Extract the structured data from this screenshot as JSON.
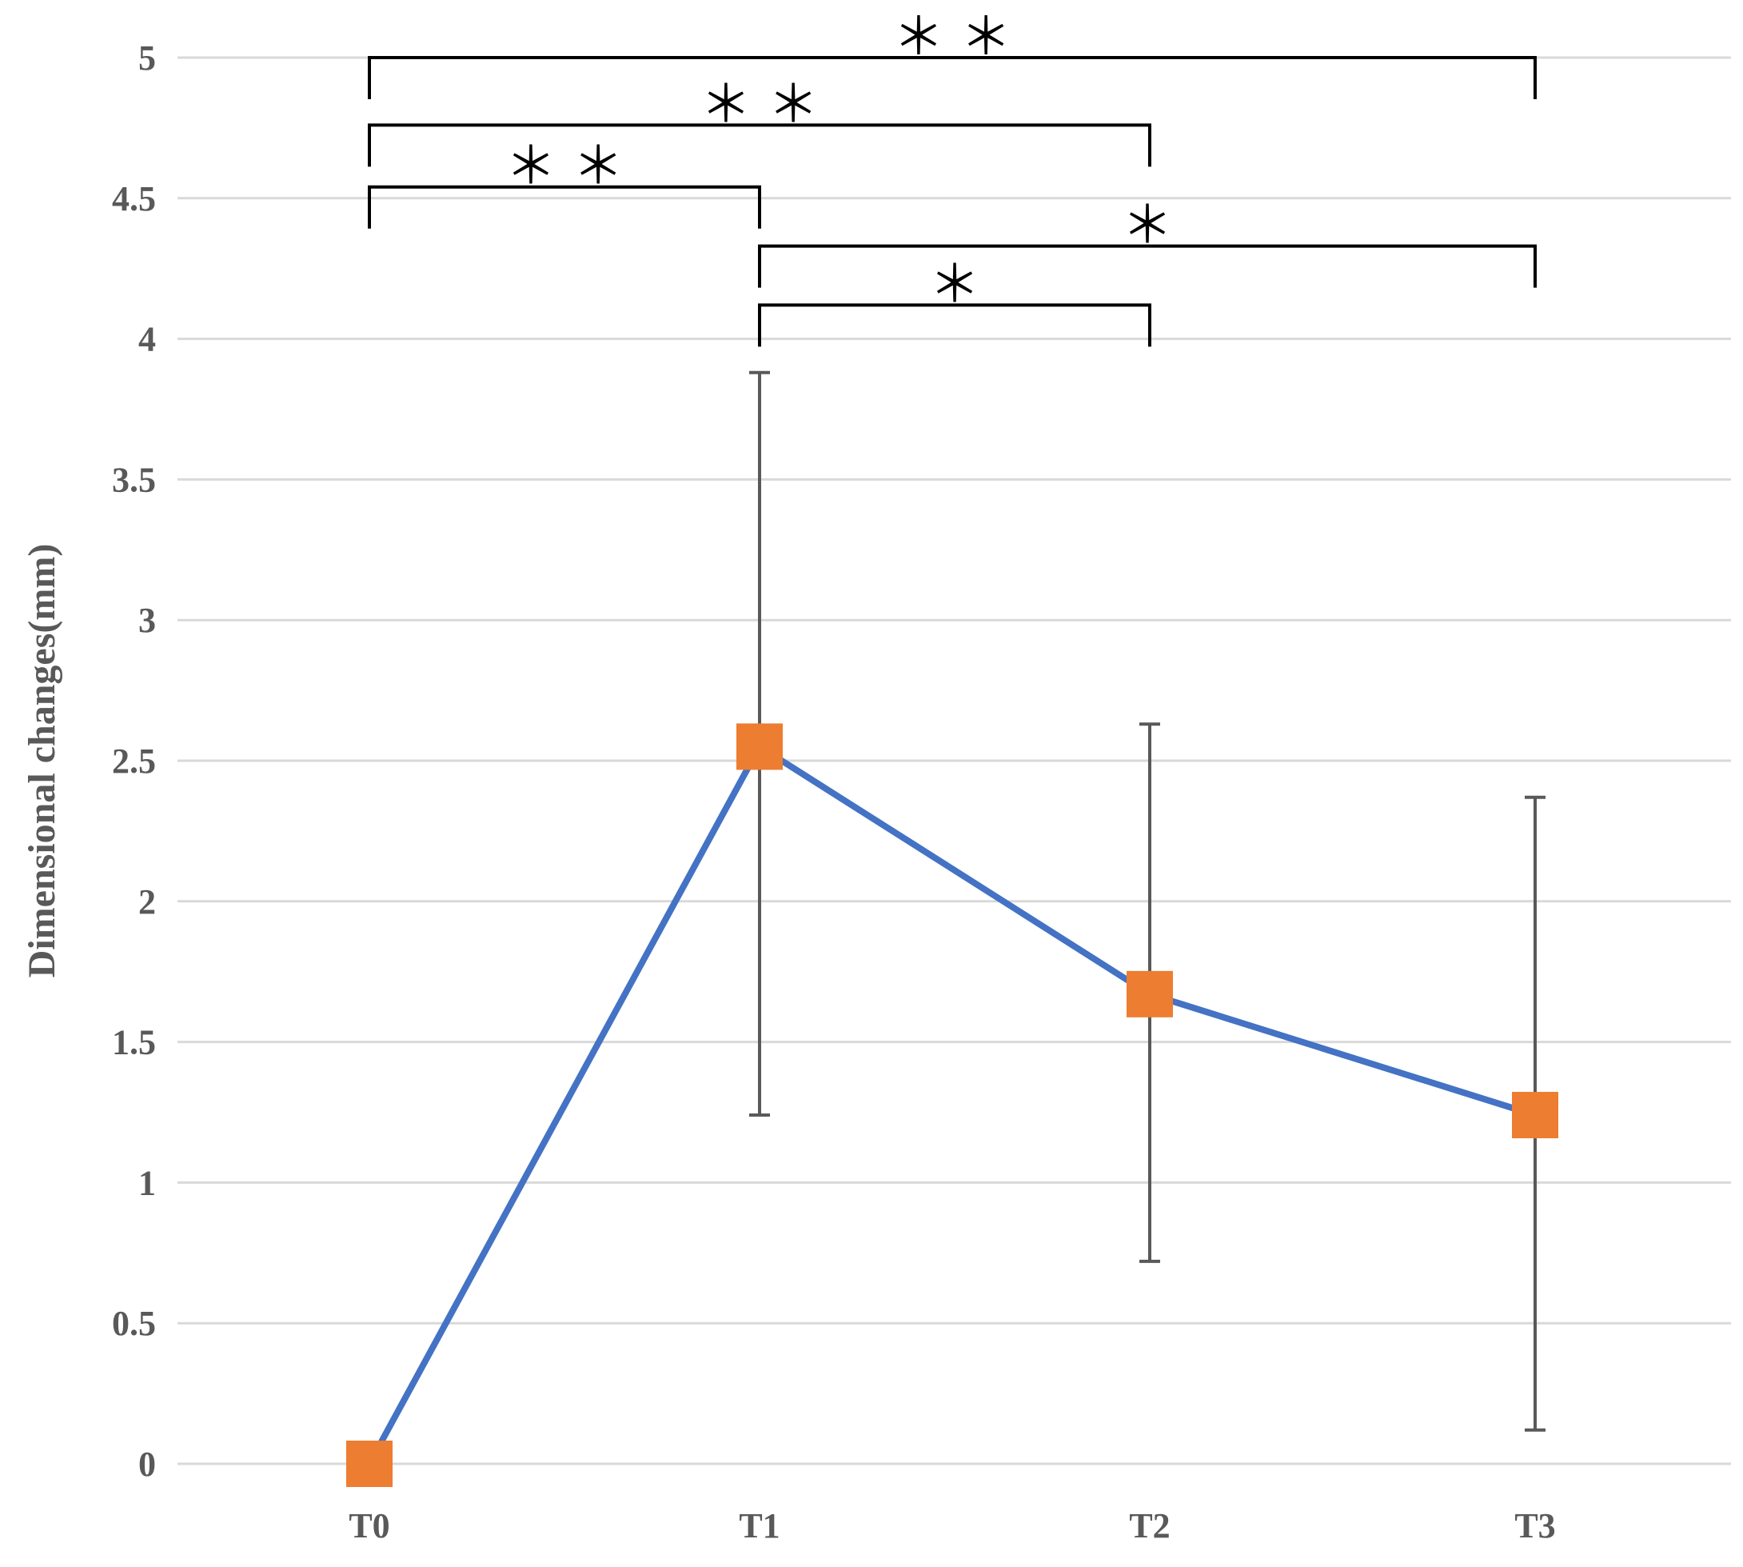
{
  "chart_data": {
    "type": "line",
    "title": "",
    "xlabel": "",
    "ylabel": "Dimensional changes(mm)",
    "categories": [
      "T0",
      "T1",
      "T2",
      "T3"
    ],
    "ylim": [
      0,
      5
    ],
    "yticks": [
      "0",
      "0.5",
      "1",
      "1.5",
      "2",
      "2.5",
      "3",
      "3.5",
      "4",
      "4.5",
      "5"
    ],
    "grid": true,
    "legend": "none",
    "series": [
      {
        "values": [
          0,
          2.55,
          1.67,
          1.24
        ],
        "error_low": [
          0,
          1.24,
          0.72,
          0.12
        ],
        "error_high": [
          0,
          3.88,
          2.63,
          2.37
        ],
        "line_color": "#4472C4",
        "marker_color": "#ED7D31",
        "marker": "square"
      }
    ],
    "significance": [
      {
        "from": "T0",
        "to": "T3",
        "label": "＊ ＊",
        "level": 5.0
      },
      {
        "from": "T0",
        "to": "T2",
        "label": "＊ ＊",
        "level": 4.76
      },
      {
        "from": "T0",
        "to": "T1",
        "label": "＊ ＊",
        "level": 4.54
      },
      {
        "from": "T1",
        "to": "T3",
        "label": "＊",
        "level": 4.33
      },
      {
        "from": "T1",
        "to": "T2",
        "label": "＊",
        "level": 4.12
      }
    ],
    "colors": {
      "grid": "#D9D9D9",
      "error_bar": "#595959",
      "bracket": "#000000"
    }
  }
}
